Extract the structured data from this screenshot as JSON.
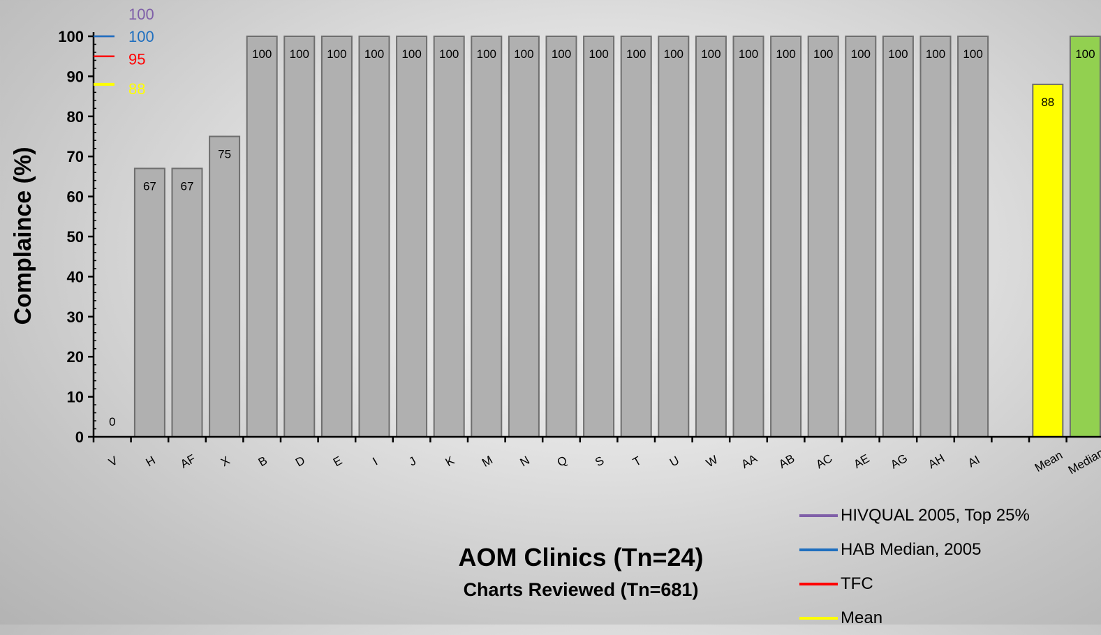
{
  "chart_data": {
    "type": "bar",
    "title": "AOM Clinics (Tn=24)",
    "subtitle": "Charts Reviewed (Tn=681)",
    "ylabel": "Complaince (%)",
    "xlabel": "",
    "ylim": [
      0,
      100
    ],
    "yticks": [
      "0",
      "10",
      "20",
      "30",
      "40",
      "50",
      "60",
      "70",
      "80",
      "90",
      "100"
    ],
    "categories": [
      "V",
      "H",
      "AF",
      "X",
      "B",
      "D",
      "E",
      "I",
      "J",
      "K",
      "M",
      "N",
      "Q",
      "S",
      "T",
      "U",
      "W",
      "AA",
      "AB",
      "AC",
      "AE",
      "AG",
      "AH",
      "AI",
      "",
      "Mean",
      "Median"
    ],
    "values": [
      0,
      67,
      67,
      75,
      100,
      100,
      100,
      100,
      100,
      100,
      100,
      100,
      100,
      100,
      100,
      100,
      100,
      100,
      100,
      100,
      100,
      100,
      100,
      100,
      null,
      88,
      100
    ],
    "data_labels": [
      "0",
      "67",
      "67",
      "75",
      "100",
      "100",
      "100",
      "100",
      "100",
      "100",
      "100",
      "100",
      "100",
      "100",
      "100",
      "100",
      "100",
      "100",
      "100",
      "100",
      "100",
      "100",
      "100",
      "100",
      "",
      "88",
      "100"
    ],
    "bar_colors": {
      "default": "#b0b0b0",
      "Mean": "#ffff00",
      "Median": "#92d050"
    },
    "reference_lines": [
      {
        "name": "HIVQUAL 2005, Top 25%",
        "value": 100,
        "label": "100",
        "color": "#7f5fa8"
      },
      {
        "name": "HAB Median, 2005",
        "value": 100,
        "label": "100",
        "color": "#1f6fbf"
      },
      {
        "name": "TFC",
        "value": 95,
        "label": "95",
        "color": "#ff0000"
      },
      {
        "name": "Mean",
        "value": 88,
        "label": "88",
        "color": "#ffff00"
      }
    ],
    "legend_position": "bottom-right",
    "grid": false
  }
}
